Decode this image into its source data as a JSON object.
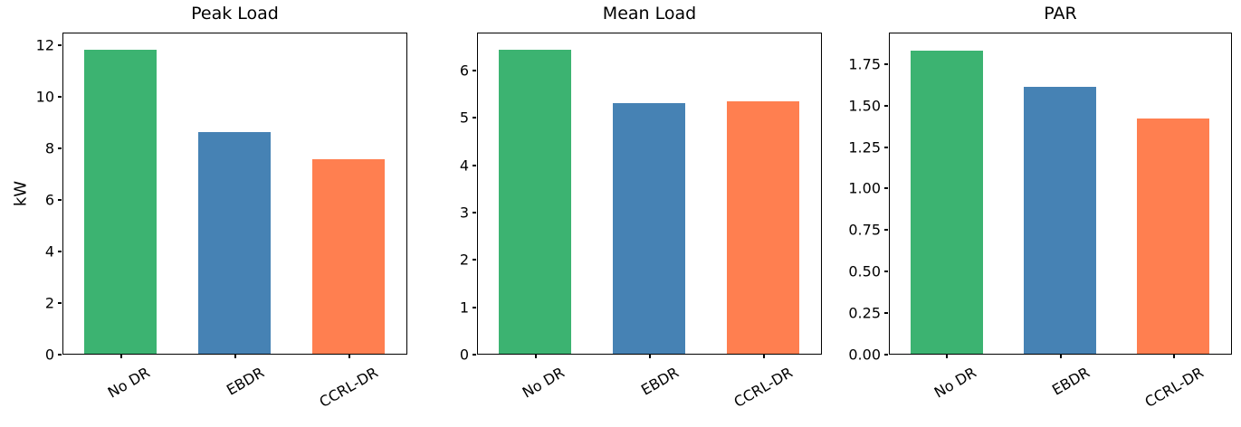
{
  "figure": {
    "background": "#ffffff"
  },
  "colors": {
    "bar_green": "#3cb371",
    "bar_blue": "#4682b4",
    "bar_orange": "#ff7f50",
    "axis": "#000000",
    "text": "#000000"
  },
  "chart_data": [
    {
      "type": "bar",
      "title": "Peak Load",
      "xlabel": "",
      "ylabel": "kW",
      "categories": [
        "No DR",
        "EBDR",
        "CCRL-DR"
      ],
      "values": [
        11.9,
        8.66,
        7.61
      ],
      "bar_colors": [
        "#3cb371",
        "#4682b4",
        "#ff7f50"
      ],
      "ylim": [
        0,
        12.5
      ],
      "yticks": [
        0,
        2,
        4,
        6,
        8,
        10,
        12
      ],
      "ytick_labels": [
        "0",
        "2",
        "4",
        "6",
        "8",
        "10",
        "12"
      ],
      "xtick_rotation_deg": 30,
      "grid": false,
      "legend": null
    },
    {
      "type": "bar",
      "title": "Mean Load",
      "xlabel": "",
      "ylabel": "",
      "categories": [
        "No DR",
        "EBDR",
        "CCRL-DR"
      ],
      "values": [
        6.48,
        5.34,
        5.37
      ],
      "bar_colors": [
        "#3cb371",
        "#4682b4",
        "#ff7f50"
      ],
      "ylim": [
        0,
        6.8
      ],
      "yticks": [
        0,
        1,
        2,
        3,
        4,
        5,
        6
      ],
      "ytick_labels": [
        "0",
        "1",
        "2",
        "3",
        "4",
        "5",
        "6"
      ],
      "xtick_rotation_deg": 30,
      "grid": false,
      "legend": null
    },
    {
      "type": "bar",
      "title": "PAR",
      "xlabel": "",
      "ylabel": "",
      "categories": [
        "No DR",
        "EBDR",
        "CCRL-DR"
      ],
      "values": [
        1.84,
        1.62,
        1.43
      ],
      "bar_colors": [
        "#3cb371",
        "#4682b4",
        "#ff7f50"
      ],
      "ylim": [
        0,
        1.94
      ],
      "yticks": [
        0,
        0.25,
        0.5,
        0.75,
        1.0,
        1.25,
        1.5,
        1.75
      ],
      "ytick_labels": [
        "0.00",
        "0.25",
        "0.50",
        "0.75",
        "1.00",
        "1.25",
        "1.50",
        "1.75"
      ],
      "xtick_rotation_deg": 30,
      "grid": false,
      "legend": null
    }
  ]
}
